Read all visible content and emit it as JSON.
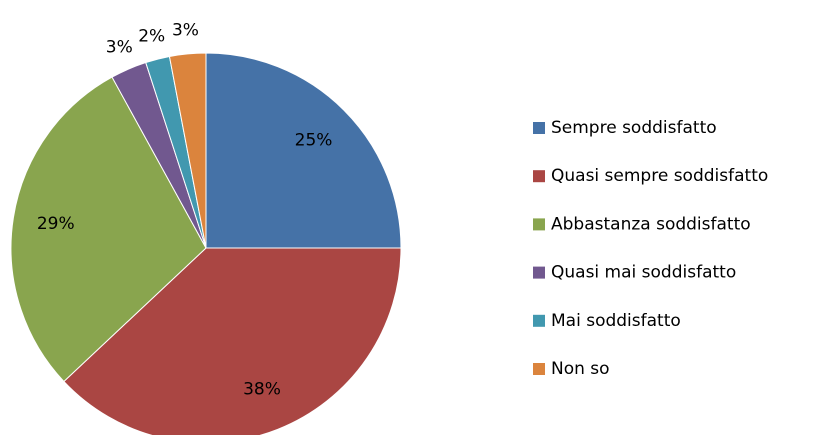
{
  "chart_data": {
    "type": "pie",
    "categories": [
      "Sempre soddisfatto",
      "Quasi sempre soddisfatto",
      "Abbastanza soddisfatto",
      "Quasi mai soddisfatto",
      "Mai soddisfatto",
      "Non so"
    ],
    "values": [
      25,
      38,
      29,
      3,
      2,
      3
    ],
    "value_labels": [
      "25%",
      "38%",
      "29%",
      "3%",
      "2%",
      "3%"
    ],
    "colors": [
      "#4572a7",
      "#aa4643",
      "#89a54e",
      "#71588f",
      "#4198af",
      "#db843d"
    ],
    "legend": "right"
  }
}
